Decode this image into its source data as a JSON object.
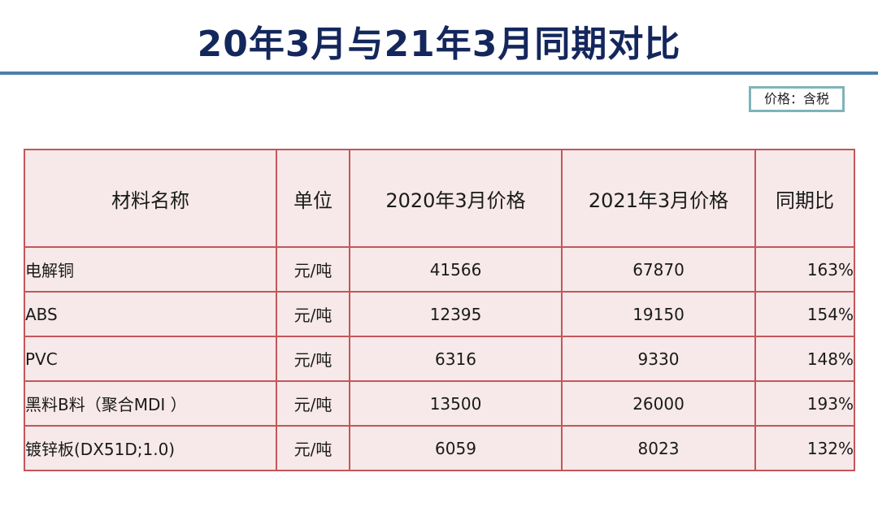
{
  "title": "20年3月与21年3月同期对比",
  "price_note": "价格：含税",
  "table": {
    "headers": [
      "材料名称",
      "单位",
      "2020年3月价格",
      "2021年3月价格",
      "同期比"
    ],
    "rows": [
      {
        "name": "电解铜",
        "unit": "元/吨",
        "price_2020": "41566",
        "price_2021": "67870",
        "ratio": "163%"
      },
      {
        "name": "ABS",
        "unit": "元/吨",
        "price_2020": "12395",
        "price_2021": "19150",
        "ratio": "154%"
      },
      {
        "name": "PVC",
        "unit": "元/吨",
        "price_2020": "6316",
        "price_2021": "9330",
        "ratio": "148%"
      },
      {
        "name": "黑料B料（聚合MDI ）",
        "unit": "元/吨",
        "price_2020": "13500",
        "price_2021": "26000",
        "ratio": "193%"
      },
      {
        "name": "镀锌板(DX51D;1.0)",
        "unit": "元/吨",
        "price_2020": "6059",
        "price_2021": "8023",
        "ratio": "132%"
      }
    ]
  },
  "colors": {
    "title": "#14275c",
    "rule": "#4a7fae",
    "table_border": "#c2575b",
    "table_fill": "#f7e9e9",
    "note_border": "#7fb3b8"
  }
}
